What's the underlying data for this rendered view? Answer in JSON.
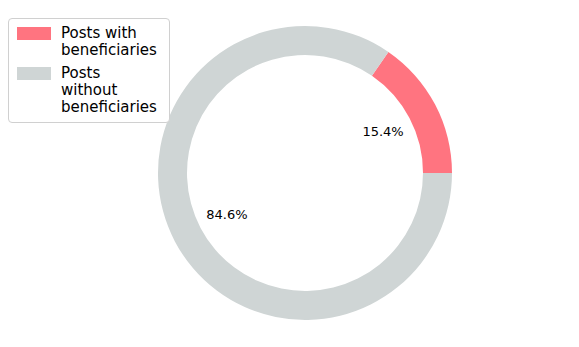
{
  "chart_data": {
    "type": "pie",
    "categories": [
      "Posts with beneficiaries",
      "Posts without beneficiaries"
    ],
    "values": [
      15.4,
      84.6
    ],
    "value_labels": [
      "15.4%",
      "84.6%"
    ],
    "colors": [
      "#ff7480",
      "#cfd5d5"
    ],
    "data_labels": true,
    "legend": "upper left"
  }
}
